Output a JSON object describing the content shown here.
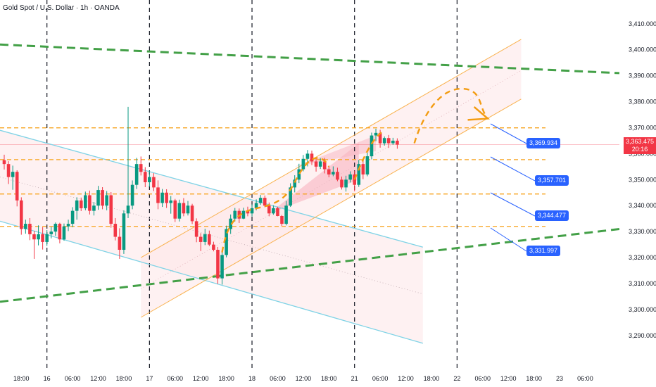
{
  "header": {
    "title": "Gold Spot / U.S. Dollar · 1h · OANDA"
  },
  "last_price": {
    "value": "3,363.475",
    "countdown": "20:16",
    "color": "#f23645"
  },
  "colors": {
    "up": "#089981",
    "down": "#f23645",
    "support": "#f7a21b",
    "trend": "#43a047",
    "channel_down": "#7fd3e6",
    "channel_up": "#f9b24f",
    "tag": "#2962ff",
    "separator": "#131722"
  },
  "chart_data": {
    "type": "candlestick",
    "title": "Gold Spot / U.S. Dollar · 1h · OANDA",
    "y_axis": {
      "range": [
        3284,
        3414
      ],
      "ticks": [
        "3,410.000",
        "3,400.000",
        "3,390.000",
        "3,380.000",
        "3,370.000",
        "3,360.000",
        "3,350.000",
        "3,340.000",
        "3,330.000",
        "3,320.000",
        "3,310.000",
        "3,300.000",
        "3,290.000"
      ],
      "tick_values": [
        3410,
        3400,
        3390,
        3380,
        3370,
        3360,
        3350,
        3340,
        3330,
        3320,
        3310,
        3300,
        3290
      ]
    },
    "x_axis": {
      "range_hours": [
        -10,
        134
      ],
      "ticks": [
        {
          "label": "18:00",
          "h": -6
        },
        {
          "label": "16",
          "h": 0
        },
        {
          "label": "06:00",
          "h": 6
        },
        {
          "label": "12:00",
          "h": 12
        },
        {
          "label": "18:00",
          "h": 18
        },
        {
          "label": "17",
          "h": 24
        },
        {
          "label": "06:00",
          "h": 30
        },
        {
          "label": "12:00",
          "h": 36
        },
        {
          "label": "18:00",
          "h": 42
        },
        {
          "label": "18",
          "h": 48
        },
        {
          "label": "06:00",
          "h": 54
        },
        {
          "label": "12:00",
          "h": 60
        },
        {
          "label": "18:00",
          "h": 66
        },
        {
          "label": "21",
          "h": 72
        },
        {
          "label": "06:00",
          "h": 78
        },
        {
          "label": "12:00",
          "h": 84
        },
        {
          "label": "18:00",
          "h": 90
        },
        {
          "label": "22",
          "h": 96
        },
        {
          "label": "06:00",
          "h": 102
        },
        {
          "label": "12:00",
          "h": 108
        },
        {
          "label": "18:00",
          "h": 114
        },
        {
          "label": "23",
          "h": 120
        },
        {
          "label": "06:00",
          "h": 126
        }
      ],
      "day_separators_h": [
        0,
        24,
        48,
        72,
        96
      ]
    },
    "candles": [
      [
        -10,
        3357.5,
        3359.6,
        3353.9,
        3356
      ],
      [
        -9,
        3356,
        3357.1,
        3348.3,
        3351
      ],
      [
        -8,
        3351,
        3355.4,
        3346.1,
        3353
      ],
      [
        -7,
        3353,
        3353.6,
        3339.7,
        3342
      ],
      [
        -6,
        3342,
        3343.2,
        3328.8,
        3331
      ],
      [
        -5,
        3331,
        3334.6,
        3329.2,
        3333
      ],
      [
        -4,
        3333,
        3335.2,
        3326.7,
        3329
      ],
      [
        -3,
        3329,
        3330.3,
        3319.5,
        3327
      ],
      [
        -2,
        3327,
        3332.4,
        3324.7,
        3329
      ],
      [
        -1,
        3329,
        3331.7,
        3323.1,
        3326
      ],
      [
        0,
        3326,
        3330.6,
        3324.5,
        3329
      ],
      [
        1,
        3329,
        3331.8,
        3327.4,
        3330
      ],
      [
        2,
        3330,
        3333.5,
        3328.4,
        3333
      ],
      [
        3,
        3333,
        3333.4,
        3325.5,
        3327
      ],
      [
        4,
        3327,
        3333.1,
        3326.5,
        3332
      ],
      [
        5,
        3332,
        3334.6,
        3330.2,
        3333
      ],
      [
        6,
        3333,
        3339.4,
        3331.7,
        3338
      ],
      [
        7,
        3338,
        3343.2,
        3334.6,
        3342
      ],
      [
        8,
        3342,
        3343.1,
        3337.9,
        3339
      ],
      [
        9,
        3339,
        3345.4,
        3338.2,
        3344
      ],
      [
        10,
        3344,
        3345.8,
        3336.6,
        3338
      ],
      [
        11,
        3338,
        3341.4,
        3336.2,
        3340
      ],
      [
        12,
        3340,
        3347.6,
        3338.4,
        3346
      ],
      [
        13,
        3346,
        3347.1,
        3338.6,
        3340
      ],
      [
        14,
        3340,
        3345.6,
        3338.2,
        3344
      ],
      [
        15,
        3344,
        3345.2,
        3331.5,
        3333
      ],
      [
        16,
        3333,
        3335.2,
        3326.6,
        3328
      ],
      [
        17,
        3328,
        3331.3,
        3319.5,
        3323
      ],
      [
        18,
        3323,
        3338.2,
        3321.4,
        3337
      ],
      [
        19,
        3337,
        3378.0,
        3335.2,
        3340
      ],
      [
        20,
        3340,
        3349.7,
        3338.6,
        3348
      ],
      [
        21,
        3348,
        3358.4,
        3346.4,
        3356
      ],
      [
        22,
        3356,
        3358.9,
        3351.6,
        3353
      ],
      [
        23,
        3353,
        3354.8,
        3347.1,
        3349
      ],
      [
        24,
        3349,
        3353.5,
        3347.2,
        3351
      ],
      [
        25,
        3351,
        3352.5,
        3345.6,
        3347
      ],
      [
        26,
        3347,
        3349.7,
        3338.6,
        3341
      ],
      [
        27,
        3341,
        3346.4,
        3339.5,
        3345
      ],
      [
        28,
        3345,
        3346.3,
        3339.1,
        3341
      ],
      [
        29,
        3341,
        3343.7,
        3336.9,
        3342
      ],
      [
        30,
        3342,
        3342.6,
        3333.7,
        3335
      ],
      [
        31,
        3335,
        3342.3,
        3333.9,
        3341
      ],
      [
        32,
        3341,
        3342.9,
        3335.9,
        3337
      ],
      [
        33,
        3337,
        3341.8,
        3336.2,
        3340
      ],
      [
        34,
        3340,
        3340.7,
        3332.9,
        3334
      ],
      [
        35,
        3334,
        3335.1,
        3325.9,
        3328
      ],
      [
        36,
        3328,
        3329.4,
        3322.5,
        3326
      ],
      [
        37,
        3326,
        3331.1,
        3324.8,
        3329
      ],
      [
        38,
        3329,
        3330.4,
        3324.4,
        3325
      ],
      [
        39,
        3325,
        3326.1,
        3322.4,
        3323
      ],
      [
        40,
        3323,
        3324.1,
        3309.9,
        3312
      ],
      [
        41,
        3312,
        3322.7,
        3309.6,
        3321
      ],
      [
        42,
        3321,
        3332.3,
        3320.1,
        3331
      ],
      [
        43,
        3331,
        3336.6,
        3329.1,
        3335
      ],
      [
        44,
        3335,
        3339.1,
        3333.9,
        3338
      ],
      [
        45,
        3338,
        3338.9,
        3333.3,
        3335
      ],
      [
        46,
        3335,
        3339.2,
        3334.8,
        3338
      ],
      [
        47,
        3338,
        3339.6,
        3335.9,
        3337
      ],
      [
        48,
        3337,
        3340.5,
        3335.8,
        3339
      ],
      [
        49,
        3339,
        3342.4,
        3338.2,
        3341
      ],
      [
        50,
        3341,
        3344.1,
        3340.3,
        3343
      ],
      [
        51,
        3343,
        3343.9,
        3339.4,
        3340
      ],
      [
        52,
        3340,
        3341.2,
        3335.9,
        3337
      ],
      [
        53,
        3337,
        3340.1,
        3336.5,
        3339
      ],
      [
        54,
        3339,
        3339.6,
        3335.9,
        3336
      ],
      [
        55,
        3336,
        3336.4,
        3332.2,
        3333
      ],
      [
        56,
        3333,
        3341.8,
        3332.4,
        3340
      ],
      [
        57,
        3340,
        3348.6,
        3339.5,
        3347
      ],
      [
        58,
        3347,
        3351.7,
        3345.1,
        3350
      ],
      [
        59,
        3350,
        3356.1,
        3348.7,
        3354
      ],
      [
        60,
        3354,
        3359.5,
        3353.2,
        3358
      ],
      [
        61,
        3358,
        3361.4,
        3355.1,
        3360
      ],
      [
        62,
        3360,
        3361.2,
        3355.6,
        3357
      ],
      [
        63,
        3357,
        3358.5,
        3353.1,
        3355
      ],
      [
        64,
        3355,
        3358.3,
        3354.1,
        3357
      ],
      [
        65,
        3357,
        3358.4,
        3352.4,
        3354
      ],
      [
        66,
        3354,
        3355.3,
        3350.9,
        3352
      ],
      [
        67,
        3352,
        3355.1,
        3351.3,
        3353
      ],
      [
        68,
        3353,
        3354.6,
        3349.4,
        3350
      ],
      [
        69,
        3350,
        3351.2,
        3346.2,
        3347
      ],
      [
        70,
        3347,
        3351.5,
        3345.4,
        3350
      ],
      [
        71,
        3350,
        3353.2,
        3348.9,
        3352
      ],
      [
        72,
        3352,
        3353.4,
        3345.5,
        3348
      ],
      [
        73,
        3348,
        3357.6,
        3347.2,
        3356
      ],
      [
        74,
        3356,
        3357.2,
        3350.2,
        3352
      ],
      [
        75,
        3352,
        3360.4,
        3351.3,
        3359
      ],
      [
        76,
        3359,
        3368.1,
        3357.8,
        3367
      ],
      [
        77,
        3367,
        3369.6,
        3364.8,
        3368
      ],
      [
        78,
        3368,
        3369.2,
        3362.3,
        3364
      ],
      [
        79,
        3364,
        3366.6,
        3363.1,
        3366
      ],
      [
        80,
        3366,
        3367.2,
        3362.2,
        3364
      ],
      [
        81,
        3364,
        3366.1,
        3363.4,
        3365
      ],
      [
        82,
        3365,
        3365.9,
        3361.9,
        3363.475
      ]
    ],
    "supports": [
      3369.934,
      3357.701,
      3344.477,
      3331.997
    ],
    "support_labels": [
      "3,369.934",
      "3,357.701",
      "3,344.477",
      "3,331.997"
    ]
  }
}
